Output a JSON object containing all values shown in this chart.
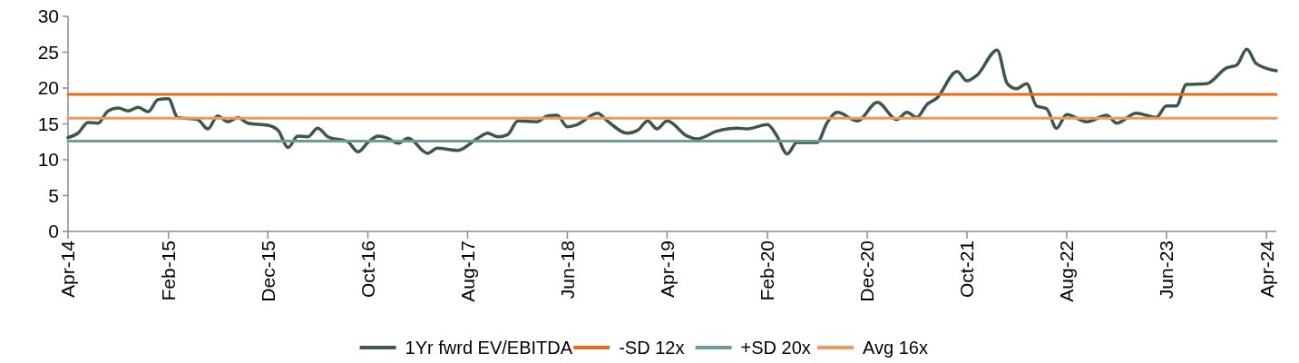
{
  "chart_data": {
    "type": "line",
    "ylim": [
      0,
      30
    ],
    "yticks": [
      0,
      5,
      10,
      15,
      20,
      25,
      30
    ],
    "xlim": [
      "2014-04",
      "2024-05"
    ],
    "xticks": [
      {
        "value": "2014-04",
        "label": "Apr-14"
      },
      {
        "value": "2015-02",
        "label": "Feb-15"
      },
      {
        "value": "2015-12",
        "label": "Dec-15"
      },
      {
        "value": "2016-10",
        "label": "Oct-16"
      },
      {
        "value": "2017-08",
        "label": "Aug-17"
      },
      {
        "value": "2018-06",
        "label": "Jun-18"
      },
      {
        "value": "2019-04",
        "label": "Apr-19"
      },
      {
        "value": "2020-02",
        "label": "Feb-20"
      },
      {
        "value": "2020-12",
        "label": "Dec-20"
      },
      {
        "value": "2021-10",
        "label": "Oct-21"
      },
      {
        "value": "2022-08",
        "label": "Aug-22"
      },
      {
        "value": "2023-06",
        "label": "Jun-23"
      },
      {
        "value": "2024-04",
        "label": "Apr-24"
      }
    ],
    "grid": false,
    "legend": "bottom",
    "marker": "none",
    "line_style": "solid",
    "series": [
      {
        "name": "1Yr fwrd EV/EBITDA",
        "color": "#3b5849",
        "x": [
          "2014-04",
          "2014-05",
          "2014-06",
          "2014-07",
          "2014-08",
          "2014-09",
          "2014-10",
          "2014-11",
          "2014-12",
          "2015-01",
          "2015-02",
          "2015-03",
          "2015-05",
          "2015-06",
          "2015-07",
          "2015-08",
          "2015-09",
          "2015-10",
          "2015-12",
          "2016-01",
          "2016-02",
          "2016-03",
          "2016-04",
          "2016-05",
          "2016-06",
          "2016-08",
          "2016-09",
          "2016-10",
          "2016-11",
          "2016-12",
          "2017-01",
          "2017-02",
          "2017-04",
          "2017-05",
          "2017-07",
          "2017-09",
          "2017-10",
          "2017-11",
          "2017-12",
          "2018-01",
          "2018-03",
          "2018-04",
          "2018-05",
          "2018-06",
          "2018-07",
          "2018-09",
          "2018-10",
          "2018-12",
          "2019-01",
          "2019-02",
          "2019-03",
          "2019-04",
          "2019-06",
          "2019-07",
          "2019-09",
          "2019-11",
          "2019-12",
          "2020-02",
          "2020-03",
          "2020-04",
          "2020-05",
          "2020-07",
          "2020-08",
          "2020-09",
          "2020-11",
          "2021-01",
          "2021-03",
          "2021-04",
          "2021-05",
          "2021-06",
          "2021-07",
          "2021-09",
          "2021-10",
          "2021-11",
          "2022-01",
          "2022-02",
          "2022-03",
          "2022-04",
          "2022-05",
          "2022-06",
          "2022-07",
          "2022-08",
          "2022-10",
          "2022-12",
          "2023-01",
          "2023-03",
          "2023-05",
          "2023-06",
          "2023-07",
          "2023-08",
          "2023-10",
          "2023-12",
          "2024-01",
          "2024-02",
          "2024-03",
          "2024-05"
        ],
        "values": [
          13.1,
          13.7,
          15.2,
          15.1,
          16.8,
          17.2,
          16.8,
          17.3,
          16.7,
          18.4,
          18.5,
          15.9,
          15.6,
          14.3,
          16.1,
          15.3,
          15.9,
          15.1,
          14.8,
          14.1,
          11.7,
          13.3,
          13.2,
          14.4,
          13.2,
          12.5,
          11.1,
          12.4,
          13.3,
          13.0,
          12.3,
          13.0,
          10.9,
          11.6,
          11.3,
          13.0,
          13.7,
          13.2,
          13.5,
          15.4,
          15.3,
          16.1,
          16.2,
          14.6,
          14.9,
          16.5,
          15.4,
          13.7,
          14.1,
          15.4,
          14.3,
          15.4,
          13.3,
          12.9,
          14.0,
          14.4,
          14.3,
          14.9,
          13.3,
          10.8,
          12.4,
          12.4,
          15.2,
          16.6,
          15.4,
          18.0,
          15.6,
          16.6,
          15.9,
          17.7,
          18.6,
          22.3,
          21.0,
          21.8,
          25.3,
          20.6,
          19.9,
          20.6,
          17.5,
          17.1,
          14.4,
          16.3,
          15.3,
          16.2,
          15.1,
          16.5,
          15.9,
          17.5,
          17.5,
          20.5,
          20.6,
          22.8,
          23.2,
          25.4,
          23.4,
          22.4
        ]
      },
      {
        "name": "-SD 12x",
        "color": "#e46c1c",
        "x": [
          "2014-04",
          "2024-05"
        ],
        "values": [
          19.1,
          19.1
        ]
      },
      {
        "name": "+SD 20x",
        "color": "#6e9a9a",
        "x": [
          "2014-04",
          "2024-05"
        ],
        "values": [
          12.6,
          12.6
        ]
      },
      {
        "name": "Avg 16x",
        "color": "#f0975a",
        "x": [
          "2014-04",
          "2024-05"
        ],
        "values": [
          15.8,
          15.8
        ]
      }
    ]
  }
}
